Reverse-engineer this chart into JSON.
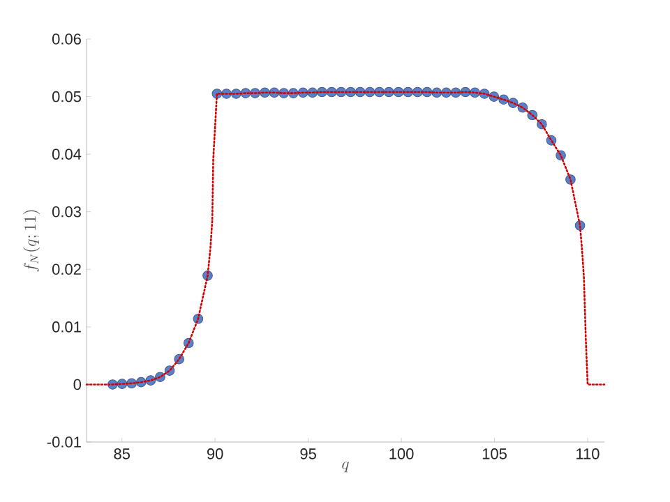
{
  "chart_data": {
    "type": "scatter",
    "xlabel": "q",
    "ylabel": "f_N(q;11)",
    "xlim": [
      83.1,
      110.9
    ],
    "ylim": [
      -0.01,
      0.06
    ],
    "xticks": [
      85,
      90,
      95,
      100,
      105,
      110
    ],
    "yticks": [
      -0.01,
      0,
      0.01,
      0.02,
      0.03,
      0.04,
      0.05,
      0.06
    ],
    "grid": false,
    "marker": "circle",
    "series": [
      {
        "color": "#5b80c8",
        "x": [
          84.5,
          85.01,
          85.52,
          86.03,
          86.54,
          87.05,
          87.56,
          88.07,
          88.58,
          89.09,
          89.6,
          90.1,
          90.61,
          91.13,
          91.64,
          92.15,
          92.67,
          93.18,
          93.69,
          94.2,
          94.72,
          95.23,
          95.74,
          96.26,
          96.77,
          97.28,
          97.79,
          98.31,
          98.82,
          99.33,
          99.85,
          100.36,
          100.87,
          101.38,
          101.9,
          102.41,
          102.92,
          103.44,
          103.95,
          104.46,
          104.97,
          105.49,
          106.0,
          106.51,
          107.03,
          107.54,
          108.05,
          108.56,
          109.08,
          109.59
        ],
        "values": [
          0.0,
          0.0001,
          0.0002,
          0.0004,
          0.0007,
          0.0013,
          0.0024,
          0.0044,
          0.0072,
          0.0114,
          0.0189,
          0.0505,
          0.0505,
          0.0505,
          0.0506,
          0.0506,
          0.0507,
          0.0507,
          0.0506,
          0.0506,
          0.0507,
          0.0507,
          0.0508,
          0.0508,
          0.0508,
          0.0508,
          0.0508,
          0.0508,
          0.0508,
          0.0508,
          0.0508,
          0.0508,
          0.0508,
          0.0508,
          0.0507,
          0.0507,
          0.0507,
          0.0508,
          0.0507,
          0.0505,
          0.05,
          0.0495,
          0.0489,
          0.0481,
          0.0468,
          0.0452,
          0.0424,
          0.0398,
          0.0356,
          0.0276
        ]
      },
      {
        "type": "line",
        "marker": "none",
        "line_style": "dotted",
        "color": "#d40000",
        "x": [
          83.1,
          84.5,
          85.01,
          85.52,
          86.03,
          86.54,
          87.05,
          87.56,
          88.07,
          88.58,
          89.09,
          89.6,
          89.75,
          89.85,
          89.9,
          90.1,
          90.61,
          91.13,
          91.64,
          92.15,
          92.67,
          93.18,
          93.69,
          94.2,
          94.72,
          95.23,
          95.74,
          96.26,
          96.77,
          97.28,
          97.79,
          98.31,
          98.82,
          99.33,
          99.85,
          100.36,
          100.87,
          101.38,
          101.9,
          102.41,
          102.92,
          103.44,
          103.95,
          104.46,
          104.97,
          105.49,
          106.0,
          106.51,
          107.03,
          107.54,
          108.05,
          108.56,
          109.08,
          109.59,
          109.7,
          109.8,
          109.9,
          110.0,
          110.9
        ],
        "values": [
          0.0,
          0.0,
          0.0001,
          0.0002,
          0.0004,
          0.0007,
          0.0013,
          0.0024,
          0.0044,
          0.0072,
          0.0114,
          0.0189,
          0.0237,
          0.0285,
          0.039,
          0.0505,
          0.0505,
          0.0505,
          0.0506,
          0.0506,
          0.0507,
          0.0507,
          0.0506,
          0.0506,
          0.0507,
          0.0507,
          0.0508,
          0.0508,
          0.0508,
          0.0508,
          0.0508,
          0.0508,
          0.0508,
          0.0508,
          0.0508,
          0.0508,
          0.0508,
          0.0508,
          0.0507,
          0.0507,
          0.0507,
          0.0508,
          0.0507,
          0.0505,
          0.05,
          0.0495,
          0.0489,
          0.0481,
          0.0468,
          0.0452,
          0.0424,
          0.0398,
          0.0356,
          0.0276,
          0.0234,
          0.0186,
          0.0081,
          0.0,
          0.0
        ]
      }
    ]
  }
}
